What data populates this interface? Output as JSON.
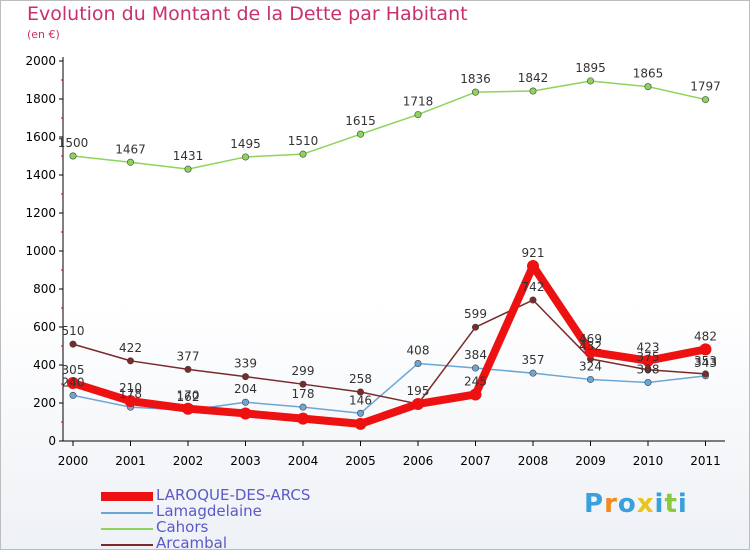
{
  "chart_data": {
    "type": "line",
    "title": "Evolution du Montant de la Dette par Habitant",
    "subtitle": "(en €)",
    "xlabel": "",
    "ylabel": "",
    "categories": [
      "2000",
      "2001",
      "2002",
      "2003",
      "2004",
      "2005",
      "2006",
      "2007",
      "2008",
      "2009",
      "2010",
      "2011"
    ],
    "ylim": [
      0,
      2000
    ],
    "yticks": [
      0,
      200,
      400,
      600,
      800,
      1000,
      1200,
      1400,
      1600,
      1800,
      2000
    ],
    "grid": false,
    "legend_position": "bottom-left",
    "series": [
      {
        "name": "LAROQUE-DES-ARCS",
        "color": "#ee1111",
        "values": [
          305,
          210,
          170,
          145,
          118,
          90,
          195,
          245,
          921,
          469,
          423,
          482
        ],
        "labels": [
          "305",
          "210",
          "170",
          "",
          "",
          "",
          "",
          "245",
          "921",
          "469",
          "423",
          "482"
        ]
      },
      {
        "name": "Lamagdelaine",
        "color": "#6aa6d6",
        "values": [
          240,
          178,
          162,
          204,
          178,
          146,
          408,
          384,
          357,
          324,
          308,
          343
        ],
        "labels": [
          "240",
          "178",
          "162",
          "204",
          "178",
          "146",
          "408",
          "384",
          "357",
          "324",
          "308",
          "343"
        ]
      },
      {
        "name": "Cahors",
        "color": "#8cd45a",
        "values": [
          1500,
          1467,
          1431,
          1495,
          1510,
          1615,
          1718,
          1836,
          1842,
          1895,
          1865,
          1797
        ],
        "labels": [
          "1500",
          "1467",
          "1431",
          "1495",
          "1510",
          "1615",
          "1718",
          "1836",
          "1842",
          "1895",
          "1865",
          "1797"
        ]
      },
      {
        "name": "Arcambal",
        "color": "#7a2a2a",
        "values": [
          510,
          422,
          377,
          339,
          299,
          258,
          195,
          599,
          742,
          432,
          375,
          353
        ],
        "labels": [
          "510",
          "422",
          "377",
          "339",
          "299",
          "258",
          "195",
          "599",
          "742",
          "432",
          "375",
          "353"
        ]
      }
    ]
  },
  "logo": {
    "text": "Proxiti",
    "letters": [
      "P",
      "r",
      "o",
      "x",
      "i",
      "t",
      "i"
    ],
    "colors": [
      "#3aa0dc",
      "#f08a1c",
      "#3aa0dc",
      "#e8c51a",
      "#3aa0dc",
      "#8cc83c",
      "#3aa0dc"
    ]
  }
}
